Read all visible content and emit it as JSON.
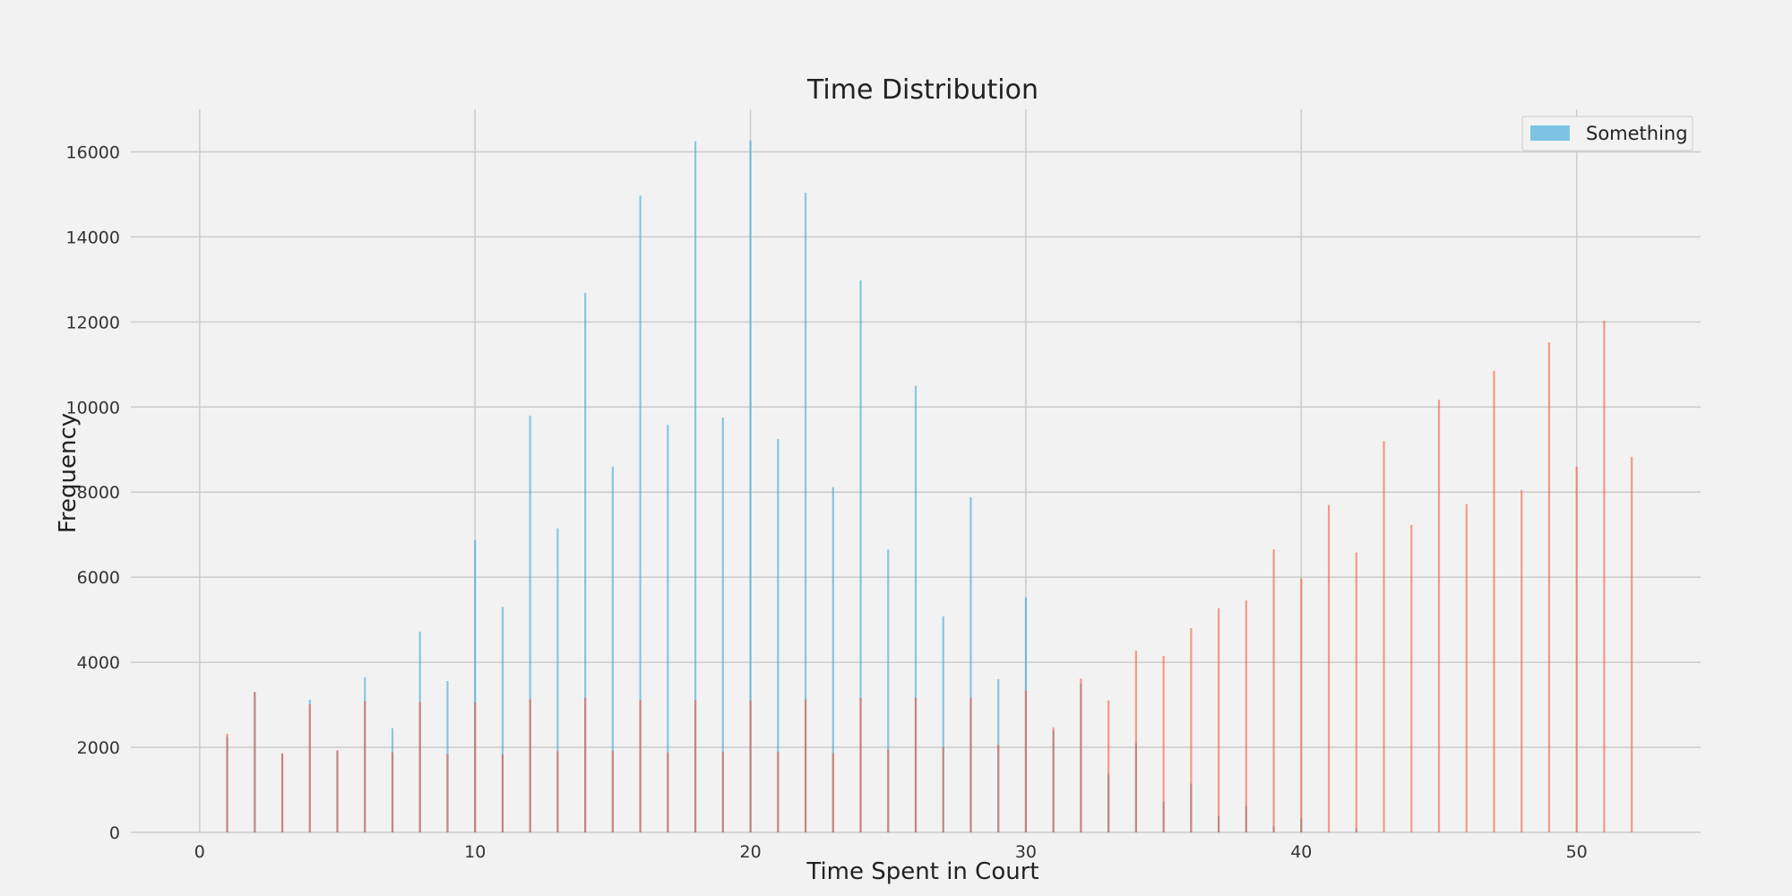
{
  "chart_data": {
    "type": "bar",
    "title": "Time Distribution",
    "xlabel": "Time Spent in Court",
    "ylabel": "Frequency",
    "xlim": [
      -2.5,
      54.5
    ],
    "ylim": [
      0,
      17000
    ],
    "xticks": [
      0,
      10,
      20,
      30,
      40,
      50
    ],
    "yticks": [
      0,
      2000,
      4000,
      6000,
      8000,
      10000,
      12000,
      14000,
      16000
    ],
    "grid": true,
    "legend": {
      "position": "top-right",
      "entries": [
        "Something"
      ]
    },
    "series": [
      {
        "name": "Something",
        "color": "#30a2da",
        "x": [
          1,
          2,
          3,
          4,
          5,
          6,
          7,
          8,
          9,
          10,
          11,
          12,
          13,
          14,
          15,
          16,
          17,
          18,
          19,
          20,
          21,
          22,
          23,
          24,
          25,
          26,
          27,
          28,
          29,
          30,
          31,
          32,
          33,
          34,
          35,
          36,
          37,
          38,
          39,
          40,
          42
        ],
        "values": [
          2250,
          3300,
          1850,
          3120,
          1920,
          3650,
          2450,
          4720,
          3560,
          6870,
          5300,
          9800,
          7150,
          12680,
          8600,
          14970,
          9580,
          16250,
          9750,
          16270,
          9250,
          15040,
          8120,
          12980,
          6650,
          10500,
          5080,
          7880,
          3600,
          5520,
          2400,
          3500,
          1380,
          2100,
          720,
          1150,
          380,
          620,
          150,
          320,
          100
        ]
      },
      {
        "name": "",
        "color": "#fc4f30",
        "x": [
          1,
          2,
          3,
          4,
          5,
          6,
          7,
          8,
          9,
          10,
          11,
          12,
          13,
          14,
          15,
          16,
          17,
          18,
          19,
          20,
          21,
          22,
          23,
          24,
          25,
          26,
          27,
          28,
          29,
          30,
          31,
          32,
          33,
          34,
          35,
          36,
          37,
          38,
          39,
          40,
          41,
          42,
          43,
          44,
          45,
          46,
          47,
          48,
          49,
          50,
          51,
          52
        ],
        "values": [
          2320,
          3300,
          1860,
          3010,
          1930,
          3090,
          1880,
          3070,
          1850,
          3050,
          1830,
          3130,
          1910,
          3170,
          1920,
          3120,
          1880,
          3110,
          1890,
          3100,
          1900,
          3130,
          1870,
          3160,
          1950,
          3170,
          2000,
          3170,
          2060,
          3330,
          2470,
          3620,
          3100,
          4270,
          4150,
          4800,
          5270,
          5450,
          6650,
          5970,
          7700,
          6580,
          9200,
          7230,
          10170,
          7720,
          10850,
          8050,
          11520,
          8600,
          12030,
          8830
        ]
      }
    ]
  }
}
